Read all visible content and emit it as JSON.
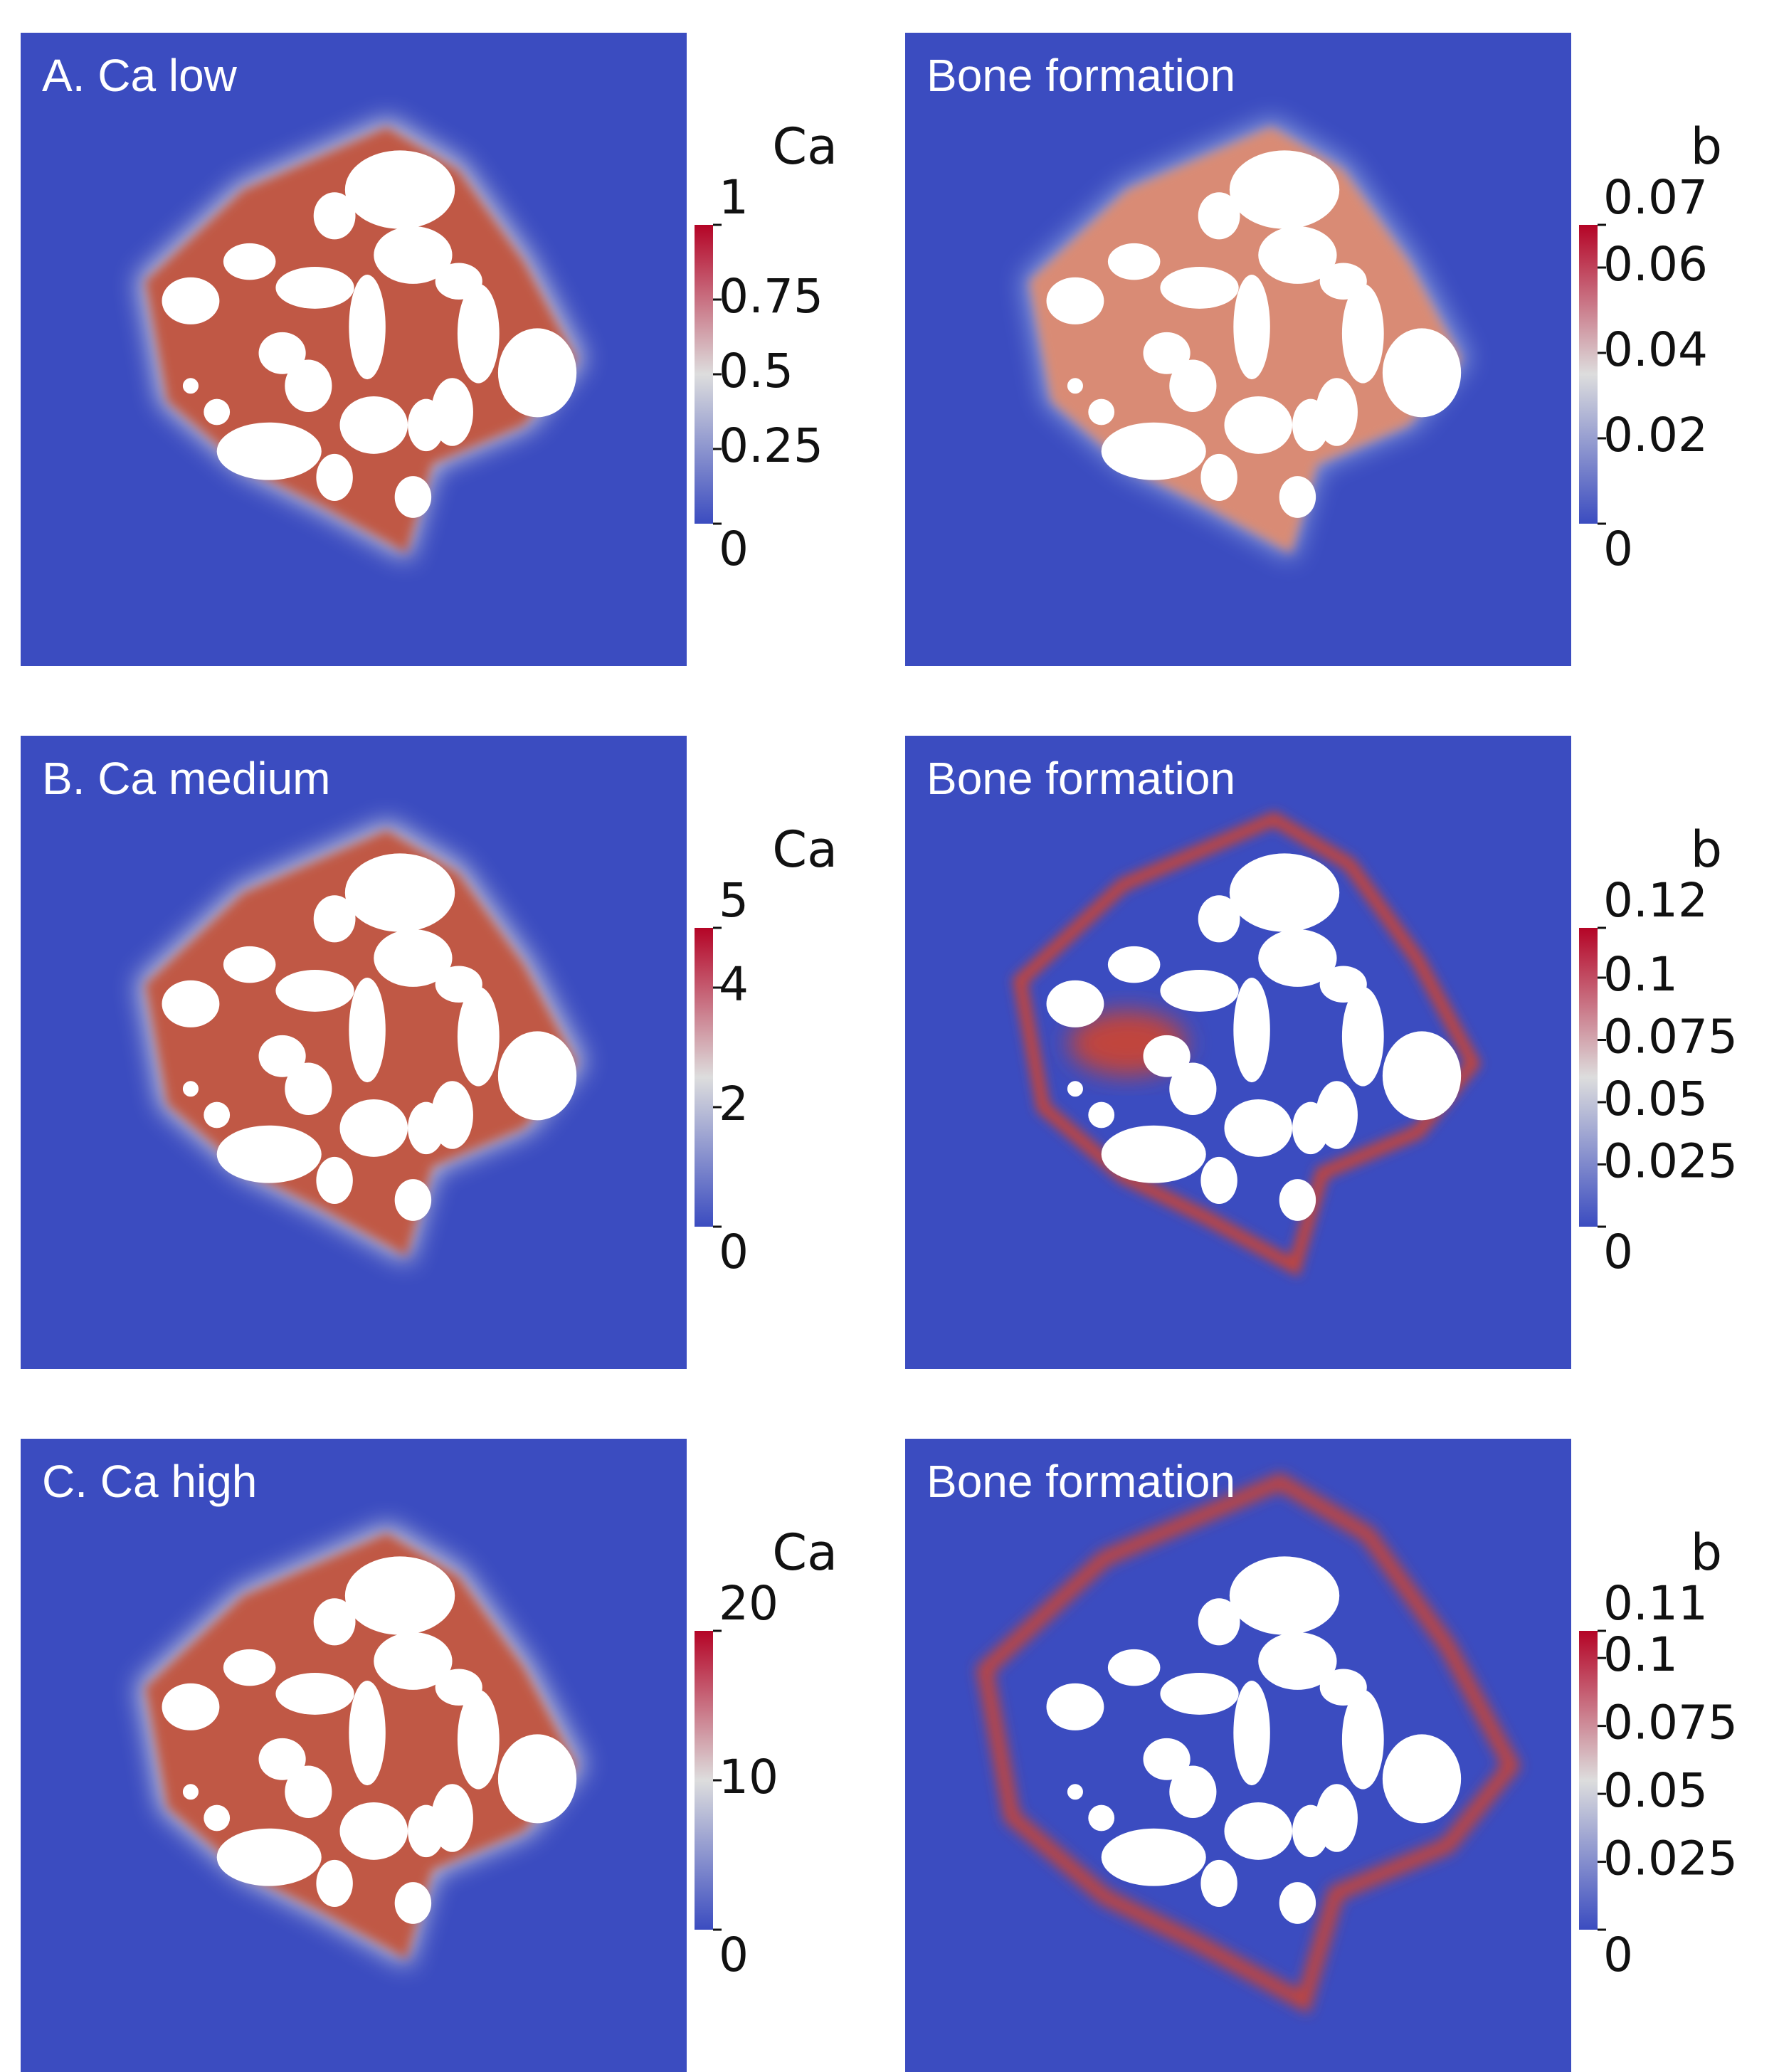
{
  "chart_data": [
    {
      "type": "heatmap",
      "title": "A. Ca low",
      "colorbar_title": "Ca",
      "clim": [
        0,
        1
      ],
      "ticks": [
        0,
        0.25,
        0.5,
        0.75,
        1
      ],
      "colormap": [
        "#3b4cc0",
        "#dddddd",
        "#b40426"
      ],
      "field": "scaffold"
    },
    {
      "type": "heatmap",
      "title": "Bone formation",
      "colorbar_title": "b",
      "clim": [
        0,
        0.07
      ],
      "ticks": [
        0,
        0.02,
        0.04,
        0.06,
        0.07
      ],
      "colormap": [
        "#3b4cc0",
        "#dddddd",
        "#b40426"
      ],
      "field": "surface"
    },
    {
      "type": "heatmap",
      "title": "B. Ca medium",
      "colorbar_title": "Ca",
      "clim": [
        0,
        5
      ],
      "ticks": [
        0,
        2,
        4,
        5
      ],
      "colormap": [
        "#3b4cc0",
        "#dddddd",
        "#b40426"
      ],
      "field": "scaffold"
    },
    {
      "type": "heatmap",
      "title": "Bone formation",
      "colorbar_title": "b",
      "clim": [
        0,
        0.12
      ],
      "ticks": [
        0,
        0.025,
        0.05,
        0.075,
        0.1,
        0.12
      ],
      "colormap": [
        "#3b4cc0",
        "#dddddd",
        "#b40426"
      ],
      "field": "ring-near"
    },
    {
      "type": "heatmap",
      "title": "C. Ca high",
      "colorbar_title": "Ca",
      "clim": [
        0,
        20
      ],
      "ticks": [
        0,
        10,
        20
      ],
      "colormap": [
        "#3b4cc0",
        "#dddddd",
        "#b40426"
      ],
      "field": "scaffold"
    },
    {
      "type": "heatmap",
      "title": "Bone formation",
      "colorbar_title": "b",
      "clim": [
        0,
        0.11
      ],
      "ticks": [
        0,
        0.025,
        0.05,
        0.075,
        0.1,
        0.11
      ],
      "colormap": [
        "#3b4cc0",
        "#dddddd",
        "#b40426"
      ],
      "field": "ring-far"
    }
  ]
}
